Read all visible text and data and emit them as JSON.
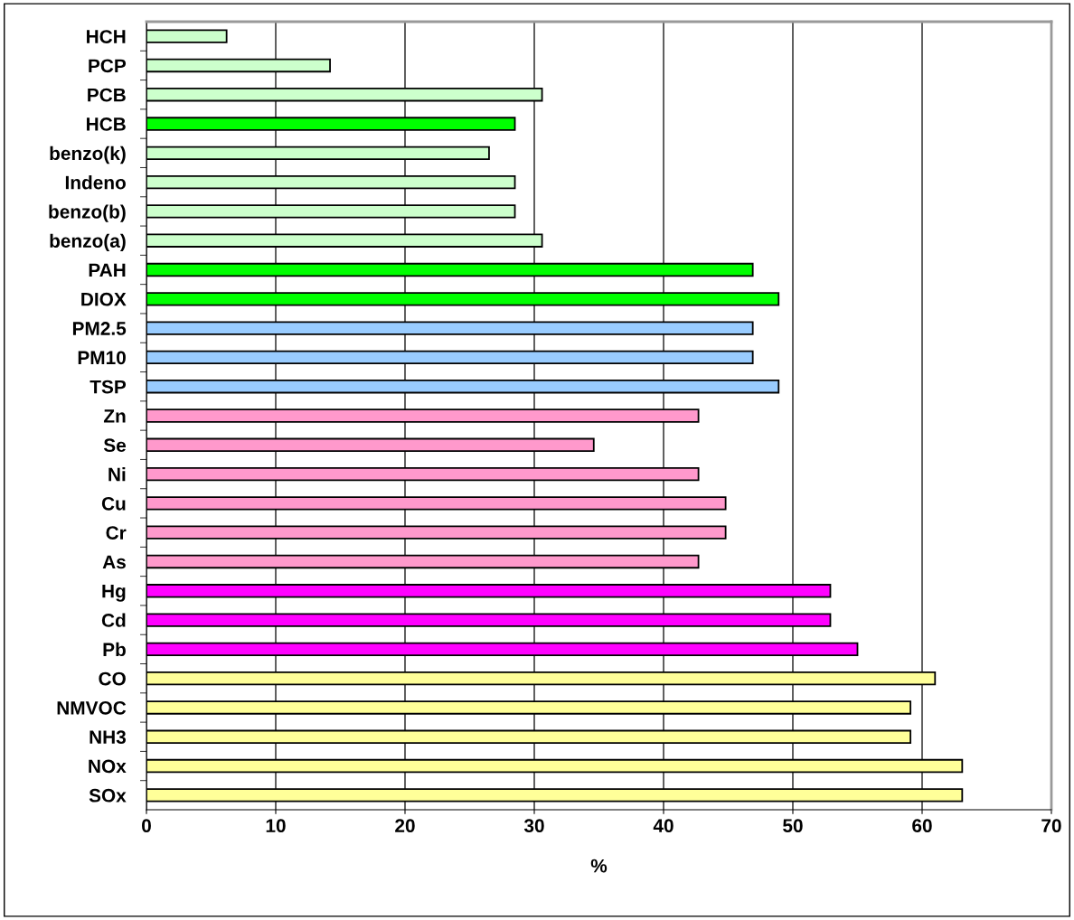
{
  "chart_data": {
    "type": "bar",
    "orientation": "horizontal",
    "xlabel": "%",
    "categories": [
      "HCH",
      "PCP",
      "PCB",
      "HCB",
      "benzo(k)",
      "Indeno",
      "benzo(b)",
      "benzo(a)",
      "PAH",
      "DIOX",
      "PM2.5",
      "PM10",
      "TSP",
      "Zn",
      "Se",
      "Ni",
      "Cu",
      "Cr",
      "As",
      "Hg",
      "Cd",
      "Pb",
      "CO",
      "NMVOC",
      "NH3",
      "NOx",
      "SOx"
    ],
    "values": [
      6.2,
      14.2,
      30.6,
      28.5,
      26.5,
      28.5,
      28.5,
      30.6,
      46.9,
      48.9,
      46.9,
      46.9,
      48.9,
      42.7,
      34.6,
      42.7,
      44.8,
      44.8,
      42.7,
      52.9,
      52.9,
      55.0,
      61.0,
      59.1,
      59.1,
      63.1,
      63.1
    ],
    "colors": [
      "#ccffcc",
      "#ccffcc",
      "#ccffcc",
      "#00ff00",
      "#ccffcc",
      "#ccffcc",
      "#ccffcc",
      "#ccffcc",
      "#00ff00",
      "#00ff00",
      "#99ccff",
      "#99ccff",
      "#99ccff",
      "#ff99cc",
      "#ff99cc",
      "#ff99cc",
      "#ff99cc",
      "#ff99cc",
      "#ff99cc",
      "#ff00ff",
      "#ff00ff",
      "#ff00ff",
      "#ffff99",
      "#ffff99",
      "#ffff99",
      "#ffff99",
      "#ffff99"
    ],
    "xlim": [
      0,
      70
    ],
    "xticks": [
      0,
      10,
      20,
      30,
      40,
      50,
      60,
      70
    ],
    "grid": "x"
  }
}
